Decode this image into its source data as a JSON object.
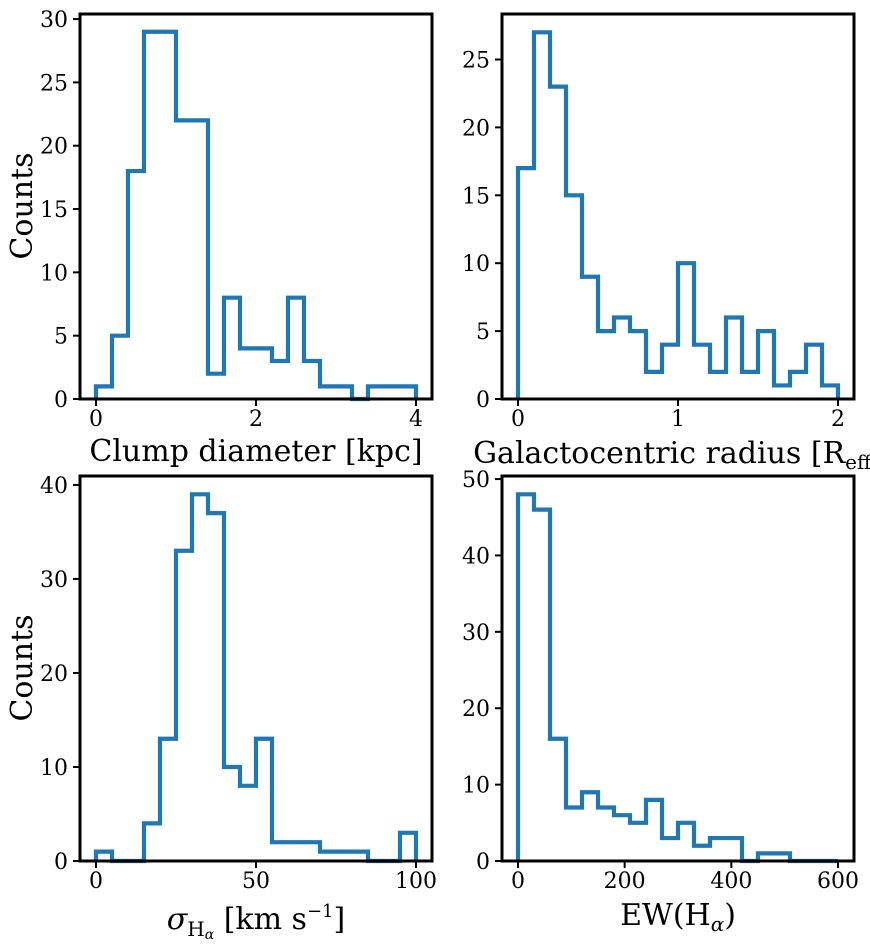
{
  "style": {
    "line_color": "#1f77b4",
    "axes_color": "#000000",
    "background": "#ffffff"
  },
  "chart_data": [
    {
      "type": "histogram",
      "bin_edges": [
        0,
        0.2,
        0.4,
        0.6,
        0.8,
        1.0,
        1.2,
        1.4,
        1.6,
        1.8,
        2.0,
        2.2,
        2.4,
        2.6,
        2.8,
        3.0,
        3.2,
        3.4,
        3.6,
        3.8,
        4.0
      ],
      "counts": [
        1,
        5,
        18,
        29,
        29,
        22,
        22,
        2,
        8,
        4,
        4,
        3,
        8,
        3,
        1,
        1,
        0,
        1,
        1,
        1
      ],
      "xlim": [
        -0.2,
        4.2
      ],
      "ylim": [
        0,
        30.4
      ],
      "xticks": [
        0,
        2,
        4
      ],
      "xtick_labels": [
        "0",
        "2",
        "4"
      ],
      "yticks": [
        0,
        5,
        10,
        15,
        20,
        25,
        30
      ],
      "ytick_labels": [
        "0",
        "5",
        "10",
        "15",
        "20",
        "25",
        "30"
      ],
      "xlabel": {
        "main": "Clump diameter [kpc]"
      },
      "ylabel": "Counts"
    },
    {
      "type": "histogram",
      "bin_edges": [
        0,
        0.1,
        0.2,
        0.3,
        0.4,
        0.5,
        0.6,
        0.7,
        0.8,
        0.9,
        1.0,
        1.1,
        1.2,
        1.3,
        1.4,
        1.5,
        1.6,
        1.7,
        1.8,
        1.9,
        2.0
      ],
      "counts": [
        17,
        27,
        23,
        15,
        9,
        5,
        6,
        5,
        2,
        4,
        10,
        4,
        2,
        6,
        2,
        5,
        1,
        2,
        4,
        1
      ],
      "xlim": [
        -0.1,
        2.1
      ],
      "ylim": [
        0,
        28.35
      ],
      "xticks": [
        0,
        1,
        2
      ],
      "xtick_labels": [
        "0",
        "1",
        "2"
      ],
      "yticks": [
        0,
        5,
        10,
        15,
        20,
        25
      ],
      "ytick_labels": [
        "0",
        "5",
        "10",
        "15",
        "20",
        "25"
      ],
      "xlabel": {
        "main": "Galactocentric radius [R",
        "sub": "eff",
        "post": "]"
      },
      "ylabel": ""
    },
    {
      "type": "histogram",
      "bin_edges": [
        0,
        5,
        10,
        15,
        20,
        25,
        30,
        35,
        40,
        45,
        50,
        55,
        60,
        65,
        70,
        75,
        80,
        85,
        90,
        95,
        100
      ],
      "counts": [
        1,
        0,
        0,
        4,
        13,
        33,
        39,
        37,
        10,
        8,
        13,
        2,
        2,
        2,
        1,
        1,
        1,
        0,
        0,
        3
      ],
      "xlim": [
        -5,
        105
      ],
      "ylim": [
        0,
        40.95
      ],
      "xticks": [
        0,
        50,
        100
      ],
      "xtick_labels": [
        "0",
        "50",
        "100"
      ],
      "yticks": [
        0,
        10,
        20,
        30,
        40
      ],
      "ytick_labels": [
        "0",
        "10",
        "20",
        "30",
        "40"
      ],
      "xlabel": {
        "pre_italic": "σ",
        "sub": "H",
        "subsub": "α",
        "main": " [km s",
        "sup": "−1",
        "post": "]"
      },
      "ylabel": "Counts"
    },
    {
      "type": "histogram",
      "bin_edges": [
        0,
        30,
        60,
        90,
        120,
        150,
        180,
        210,
        240,
        270,
        300,
        330,
        360,
        390,
        420,
        450,
        480,
        510,
        540,
        570,
        600
      ],
      "counts": [
        48,
        46,
        16,
        7,
        9,
        7,
        6,
        5,
        8,
        3,
        5,
        2,
        3,
        3,
        0,
        1,
        1,
        0,
        0,
        0
      ],
      "xlim": [
        -30,
        630
      ],
      "ylim": [
        0,
        50.4
      ],
      "xticks": [
        0,
        200,
        400,
        600
      ],
      "xtick_labels": [
        "0",
        "200",
        "400",
        "600"
      ],
      "yticks": [
        0,
        10,
        20,
        30,
        40,
        50
      ],
      "ytick_labels": [
        "0",
        "10",
        "20",
        "30",
        "40",
        "50"
      ],
      "xlabel": {
        "main": "EW(H",
        "sub_italic": "α",
        "post": ")"
      },
      "ylabel": ""
    }
  ]
}
